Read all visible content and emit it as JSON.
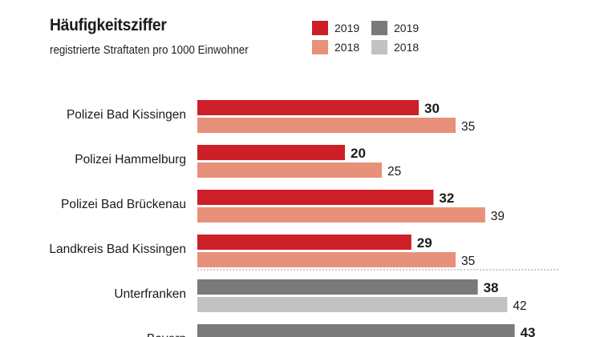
{
  "chart_data": {
    "type": "bar",
    "orientation": "horizontal",
    "title": "Häufigkeitsziffer",
    "subtitle": "registrierte Straftaten pro 1000 Einwohner",
    "xlim": [
      0,
      45
    ],
    "legend": [
      {
        "label": "2019",
        "color": "#cc1f27"
      },
      {
        "label": "2018",
        "color": "#e8917a"
      },
      {
        "label": "2019",
        "color": "#7a7a7a"
      },
      {
        "label": "2018",
        "color": "#c2c2c2"
      }
    ],
    "categories": [
      "Polizei Bad Kissingen",
      "Polizei Hammelburg",
      "Polizei Bad Brückenau",
      "Landkreis Bad Kissingen",
      "Unterfranken",
      "Bayern"
    ],
    "series": [
      {
        "name": "2019",
        "values": [
          30,
          20,
          32,
          29,
          38,
          43
        ]
      },
      {
        "name": "2018",
        "values": [
          35,
          25,
          39,
          35,
          42,
          null
        ]
      }
    ],
    "group": [
      "local",
      "local",
      "local",
      "local",
      "regional",
      "regional"
    ],
    "colors": {
      "local": {
        "2019": "#cc1f27",
        "2018": "#e8917a"
      },
      "regional": {
        "2019": "#7a7a7a",
        "2018": "#c2c2c2"
      },
      "divider": "#9a9a9a"
    }
  }
}
